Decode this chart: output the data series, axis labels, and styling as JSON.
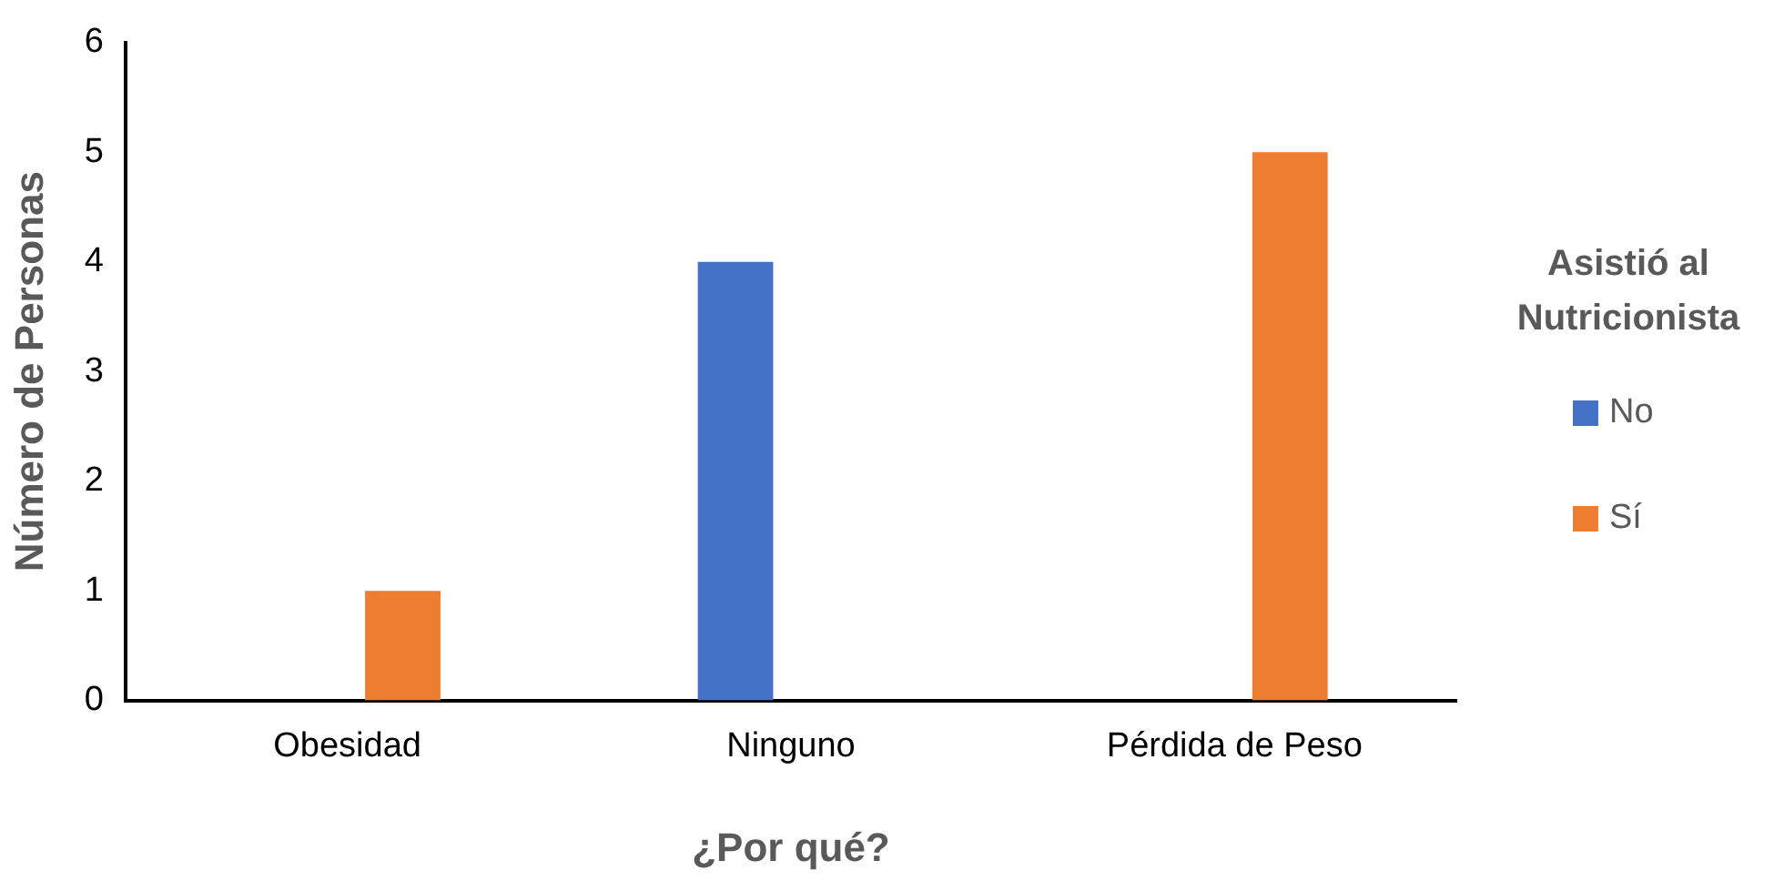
{
  "chart_data": {
    "type": "bar",
    "xlabel": "¿Por qué?",
    "ylabel": "Número de Personas",
    "legend_title": "Asistió al Nutricionista",
    "categories": [
      "Obesidad",
      "Ninguno",
      "Pérdida de Peso"
    ],
    "series": [
      {
        "name": "No",
        "color": "#4472c4",
        "values": [
          null,
          4,
          null
        ]
      },
      {
        "name": "Sí",
        "color": "#ed7d31",
        "values": [
          1,
          null,
          5
        ]
      }
    ],
    "ylim": [
      0,
      6
    ],
    "yticks": [
      0,
      1,
      2,
      3,
      4,
      5,
      6
    ],
    "grid": false,
    "legend": "right"
  }
}
